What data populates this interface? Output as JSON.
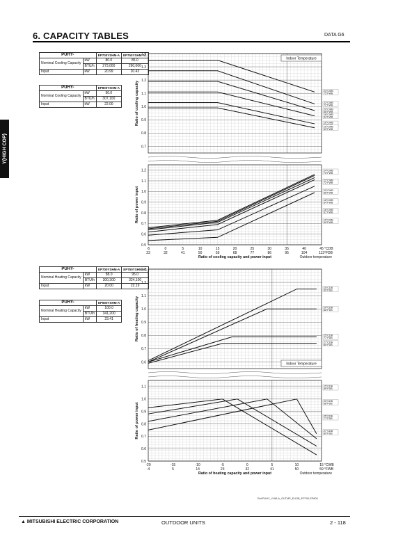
{
  "header": {
    "title": "6. CAPACITY TABLES",
    "section": "DATA G6"
  },
  "side_tab": "Y(HIGH COP)",
  "cooling_tables": [
    {
      "title": "PUHY-",
      "models": [
        "EP700YSHM-A",
        "EP750YSHM-A1"
      ],
      "rows": [
        {
          "label": "Nominal Cooling Capacity",
          "unit": "kW",
          "values": [
            "80.0",
            "85.0"
          ]
        },
        {
          "label": "",
          "unit": "BTU/h",
          "values": [
            "273,000",
            "290,000"
          ]
        },
        {
          "label": "Input",
          "unit": "kW",
          "values": [
            "20.99",
            "20.43"
          ]
        }
      ]
    },
    {
      "title": "PUHY-",
      "models": [
        "EP800YSHM-A"
      ],
      "rows": [
        {
          "label": "Nominal Cooling Capacity",
          "unit": "kW",
          "values": [
            "90.0"
          ]
        },
        {
          "label": "",
          "unit": "BTU/h",
          "values": [
            "307,100"
          ]
        },
        {
          "label": "Input",
          "unit": "kW",
          "values": [
            "22.00"
          ]
        }
      ]
    }
  ],
  "heating_tables": [
    {
      "title": "PUHY-",
      "models": [
        "EP700YSHM-A",
        "EP750YSHM-A1"
      ],
      "rows": [
        {
          "label": "Nominal Heating Capacity",
          "unit": "kW",
          "values": [
            "88.0",
            "95.0"
          ]
        },
        {
          "label": "",
          "unit": "BTU/h",
          "values": [
            "300,300",
            "324,100"
          ]
        },
        {
          "label": "Input",
          "unit": "kW",
          "values": [
            "20.00",
            "22.19"
          ]
        }
      ]
    },
    {
      "title": "PUHY-",
      "models": [
        "EP800YSHM-A"
      ],
      "rows": [
        {
          "label": "Nominal Heating Capacity",
          "unit": "kW",
          "values": [
            "100.0"
          ]
        },
        {
          "label": "",
          "unit": "BTU/h",
          "values": [
            "341,200"
          ]
        },
        {
          "label": "Input",
          "unit": "kW",
          "values": [
            "23.41"
          ]
        }
      ]
    }
  ],
  "chart_data": [
    {
      "type": "line",
      "id": "cooling_capacity",
      "ylabel": "Ratio of cooling capacity",
      "ylim": [
        0.65,
        1.4
      ],
      "yticks": [
        "1.4",
        "1.3",
        "1.2",
        "1.1",
        "1.0",
        "0.9",
        "0.8",
        "0.7"
      ],
      "xlim": [
        -5,
        45
      ],
      "legend_title": "Indoor Temperature",
      "grid": true,
      "series": [
        {
          "name": "24°CWB 75°FWB",
          "x": [
            -5,
            15,
            43
          ],
          "y": [
            1.35,
            1.35,
            1.11
          ]
        },
        {
          "name": "22°CWB 72°FWB",
          "x": [
            -5,
            15,
            43
          ],
          "y": [
            1.27,
            1.27,
            1.02
          ]
        },
        {
          "name": "20°CWB 68°FWB",
          "x": [
            -5,
            15,
            43
          ],
          "y": [
            1.19,
            1.19,
            0.97
          ]
        },
        {
          "name": "18°CWB 64°FWB",
          "x": [
            -5,
            15,
            43
          ],
          "y": [
            1.11,
            1.11,
            0.93
          ]
        },
        {
          "name": "16°CWB 61°FWB",
          "x": [
            -5,
            15,
            43
          ],
          "y": [
            1.03,
            1.03,
            0.87
          ]
        },
        {
          "name": "15°CWB 59°FWB",
          "x": [
            -5,
            15,
            43
          ],
          "y": [
            0.99,
            0.99,
            0.84
          ]
        }
      ]
    },
    {
      "type": "line",
      "id": "cooling_power",
      "ylabel": "Ratio of power input",
      "ylim": [
        0.5,
        1.25
      ],
      "yticks": [
        "1.2",
        "1.1",
        "1.0",
        "0.9",
        "0.8",
        "0.7",
        "0.6",
        "0.5"
      ],
      "xlim": [
        -5,
        45
      ],
      "xticks_c": [
        "-5",
        "0",
        "5",
        "10",
        "15",
        "20",
        "25",
        "30",
        "35",
        "40",
        "45"
      ],
      "xticks_f": [
        "23",
        "32",
        "41",
        "50",
        "59",
        "68",
        "77",
        "86",
        "95",
        "104",
        "113"
      ],
      "xunit_c": "°CDB",
      "xunit_f": "°FDB",
      "xlabel": "Ratio of cooling capacity and power input",
      "xlabel2": "Outdoor temperature",
      "grid": true,
      "series": [
        {
          "name": "24°CWB 75°FWB",
          "x": [
            -5,
            15,
            43
          ],
          "y": [
            0.66,
            0.73,
            1.16
          ]
        },
        {
          "name": "22°CWB 72°FWB",
          "x": [
            -5,
            15,
            43
          ],
          "y": [
            0.65,
            0.72,
            1.15
          ]
        },
        {
          "name": "20°CWB 68°FWB",
          "x": [
            -5,
            15,
            43
          ],
          "y": [
            0.64,
            0.71,
            1.13
          ]
        },
        {
          "name": "18°CWB 64°FWB",
          "x": [
            -5,
            15,
            43
          ],
          "y": [
            0.62,
            0.69,
            1.11
          ]
        },
        {
          "name": "16°CWB 61°FWB",
          "x": [
            -5,
            15,
            43
          ],
          "y": [
            0.59,
            0.64,
            1.05
          ]
        },
        {
          "name": "15°CWB 59°FWB",
          "x": [
            -5,
            15,
            43
          ],
          "y": [
            0.54,
            0.57,
            0.99
          ]
        }
      ]
    },
    {
      "type": "line",
      "id": "heating_capacity",
      "ylabel": "Ratio of heating capacity",
      "ylim": [
        0.55,
        1.3
      ],
      "yticks": [
        "1.3",
        "1.2",
        "1.1",
        "1.0",
        "0.9",
        "0.8",
        "0.7",
        "0.6"
      ],
      "xlim": [
        -20,
        15
      ],
      "legend_title": "Indoor Temperature",
      "grid": true,
      "series": [
        {
          "name": "15°CDB 59°FDB",
          "x": [
            -20,
            10,
            14
          ],
          "y": [
            0.61,
            1.15,
            1.15
          ]
        },
        {
          "name": "20°CDB 68°FDB",
          "x": [
            -20,
            4,
            14
          ],
          "y": [
            0.6,
            1.0,
            1.0
          ]
        },
        {
          "name": "25°CDB 77°FDB",
          "x": [
            -20,
            -3,
            14
          ],
          "y": [
            0.6,
            0.79,
            0.79
          ]
        },
        {
          "name": "27°CDB 80°FDB",
          "x": [
            -20,
            -5,
            14
          ],
          "y": [
            0.59,
            0.74,
            0.74
          ]
        }
      ]
    },
    {
      "type": "line",
      "id": "heating_power",
      "ylabel": "Ratio of power input",
      "ylim": [
        0.5,
        1.15
      ],
      "yticks": [
        "1.1",
        "1.0",
        "0.9",
        "0.8",
        "0.7",
        "0.6",
        "0.5"
      ],
      "xlim": [
        -20,
        15
      ],
      "xticks_c": [
        "-20",
        "-15",
        "-10",
        "-5",
        "0",
        "5",
        "10",
        "15"
      ],
      "xticks_f": [
        "-4",
        "5",
        "14",
        "23",
        "32",
        "41",
        "50",
        "59"
      ],
      "xunit_c": "°CWB",
      "xunit_f": "°FWB",
      "xlabel": "Ratio of heating capacity and power input",
      "xlabel2": "Outdoor temperature",
      "grid": true,
      "series": [
        {
          "name": "15°CDB 59°FDB",
          "x": [
            -20,
            -5,
            14
          ],
          "y": [
            0.93,
            1.0,
            0.55
          ]
        },
        {
          "name": "20°CDB 68°FDB",
          "x": [
            -20,
            -2,
            14
          ],
          "y": [
            0.88,
            1.0,
            0.62
          ]
        },
        {
          "name": "25°CDB 77°FDB",
          "x": [
            -20,
            4,
            14
          ],
          "y": [
            0.82,
            1.0,
            0.68
          ]
        },
        {
          "name": "27°CDB 80°FDB",
          "x": [
            -20,
            10,
            14
          ],
          "y": [
            0.75,
            1.0,
            0.72
          ]
        }
      ]
    }
  ],
  "reference": "Ref:PUHY_YHM-A_OUTMP_EUOB_EP700-EP800",
  "footer": {
    "logo": "MITSUBISHI ELECTRIC CORPORATION",
    "center": "OUTDOOR UNITS",
    "page": "2 - 118"
  }
}
